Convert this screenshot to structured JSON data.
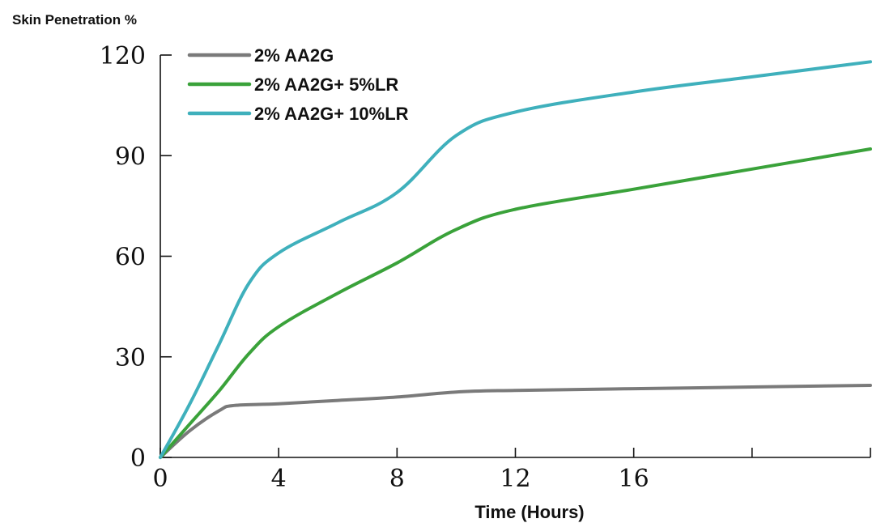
{
  "chart_data": {
    "type": "line",
    "title": "",
    "ylabel": "Skin Penetration %",
    "xlabel": "Time (Hours)",
    "xlim": [
      0,
      24
    ],
    "ylim": [
      0,
      120
    ],
    "x_ticks": [
      0,
      4,
      8,
      12,
      16,
      20,
      24
    ],
    "x_tick_labels": [
      "0",
      "4",
      "8",
      "12",
      "16",
      "",
      ""
    ],
    "y_ticks": [
      0,
      30,
      60,
      90,
      120
    ],
    "y_tick_labels": [
      "0",
      "30",
      "60",
      "90",
      "120"
    ],
    "grid": false,
    "legend_position": "top-left",
    "series": [
      {
        "name": "2% AA2G",
        "color": "#7a7a7a",
        "x": [
          0,
          1,
          2,
          2.5,
          4,
          6,
          8,
          10,
          12,
          16,
          20,
          24
        ],
        "y": [
          0,
          8,
          14,
          15.5,
          16,
          17,
          18,
          19.5,
          20,
          20.5,
          21,
          21.5
        ]
      },
      {
        "name": "2% AA2G+ 5%LR",
        "color": "#3aa23a",
        "x": [
          0,
          1,
          2,
          3,
          4,
          6,
          8,
          10,
          12,
          16,
          20,
          24
        ],
        "y": [
          0,
          10,
          20,
          31,
          39,
          49,
          58,
          68,
          74,
          80,
          86,
          92
        ]
      },
      {
        "name": "2% AA2G+ 10%LR",
        "color": "#3fb0bc",
        "x": [
          0,
          1,
          2,
          3,
          4,
          6,
          8,
          10,
          12,
          16,
          20,
          24
        ],
        "y": [
          0,
          16,
          34,
          52,
          61,
          70,
          79,
          96,
          103,
          109,
          113.5,
          118
        ]
      }
    ]
  }
}
